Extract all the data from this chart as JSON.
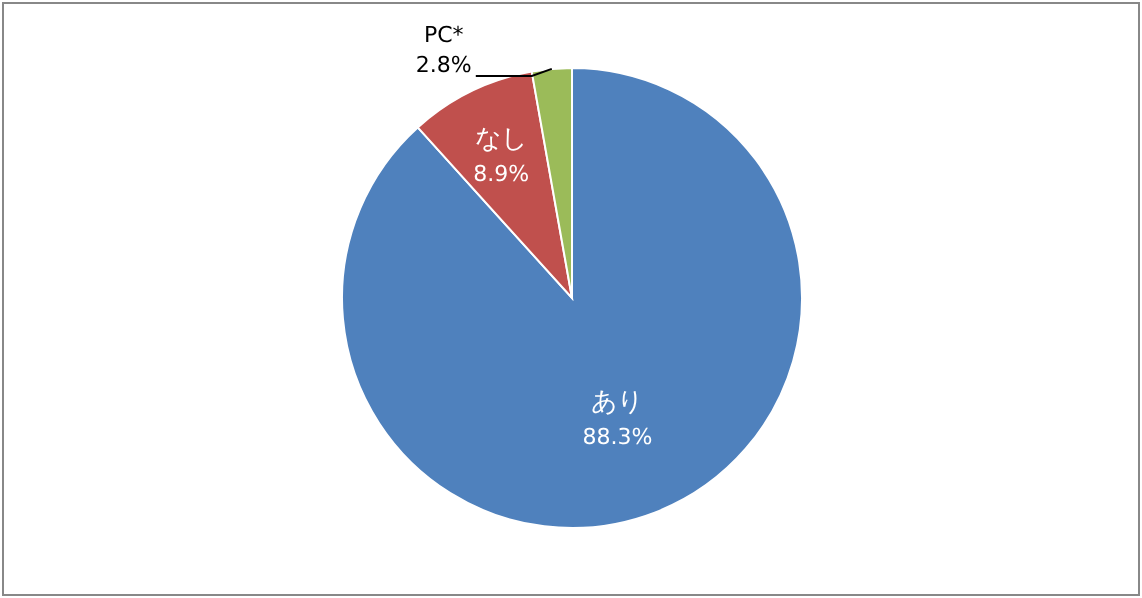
{
  "chart_data": {
    "type": "pie",
    "categories": [
      "あり",
      "なし",
      "PC*"
    ],
    "values": [
      88.3,
      8.9,
      2.8
    ],
    "value_labels": [
      "88.3%",
      "8.9%",
      "2.8%"
    ],
    "colors": [
      "#4f81bd",
      "#c0504d",
      "#9bbb59"
    ],
    "legend": false
  }
}
